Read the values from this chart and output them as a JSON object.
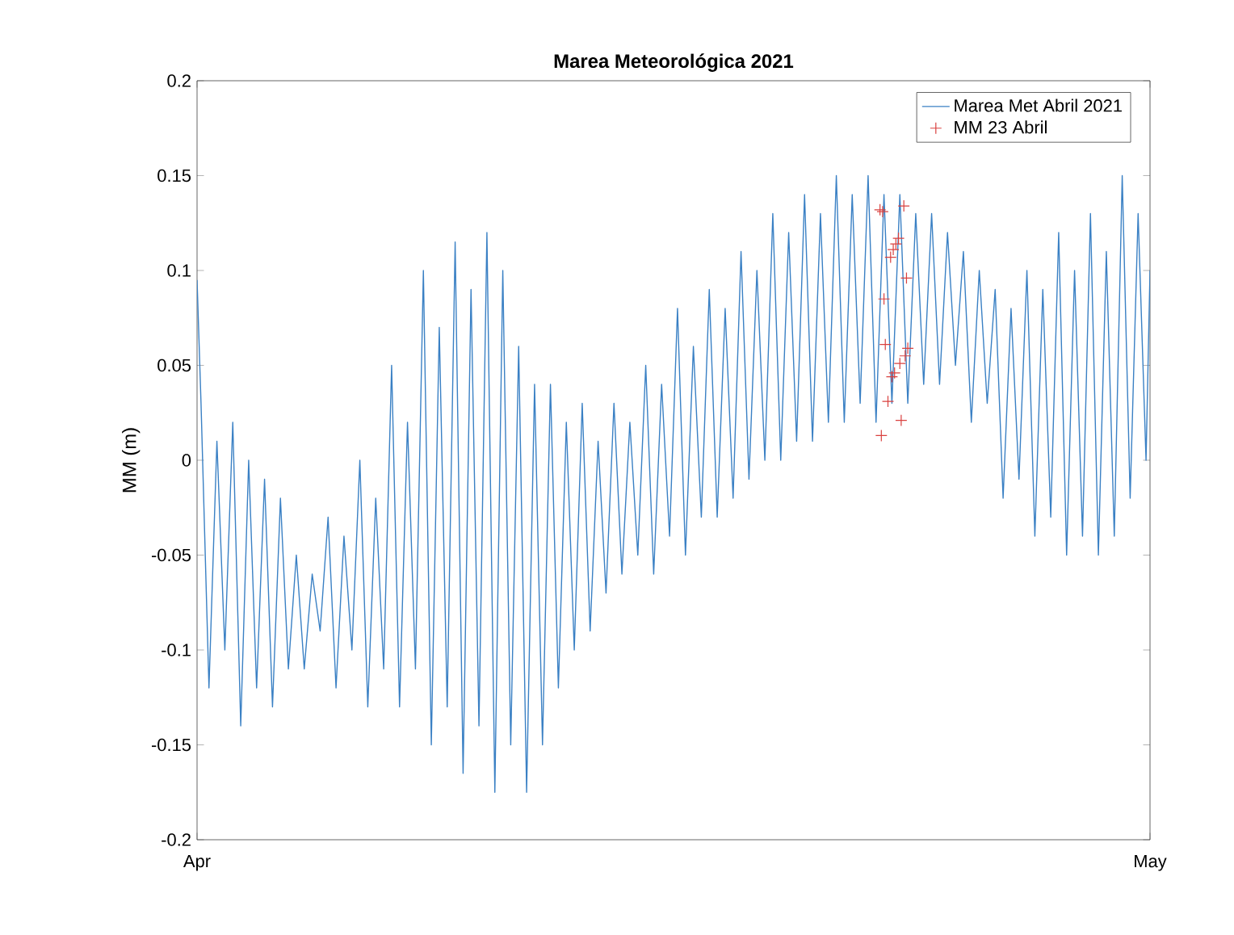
{
  "chart_data": {
    "type": "line",
    "title": "Marea Meteorológica 2021",
    "ylabel": "MM (m)",
    "xlim": [
      "2021-04-01",
      "2021-05-01"
    ],
    "xticks": [
      {
        "value": "2021-04-01",
        "label": "Apr"
      },
      {
        "value": "2021-05-01",
        "label": "May"
      }
    ],
    "ylim": [
      -0.2,
      0.2
    ],
    "yticks": [
      -0.2,
      -0.15,
      -0.1,
      -0.05,
      0,
      0.05,
      0.1,
      0.15,
      0.2
    ],
    "grid": false,
    "legend": "top right",
    "series": [
      {
        "name": "Marea Met Abril 2021",
        "color": "#3a80c4",
        "marker": "none",
        "line_style": "solid",
        "x": [
          "2021-04-01T00:00",
          "2021-04-01T03:00",
          "2021-04-01T09:00",
          "2021-04-01T15:00",
          "2021-04-01T21:00",
          "2021-04-02T03:00",
          "2021-04-02T09:00",
          "2021-04-02T15:00",
          "2021-04-02T21:00",
          "2021-04-03T03:00",
          "2021-04-03T09:00",
          "2021-04-03T15:00",
          "2021-04-03T21:00",
          "2021-04-04T03:00",
          "2021-04-04T09:00",
          "2021-04-04T15:00",
          "2021-04-04T21:00",
          "2021-04-05T03:00",
          "2021-04-05T09:00",
          "2021-04-05T15:00",
          "2021-04-05T21:00",
          "2021-04-06T03:00",
          "2021-04-06T09:00",
          "2021-04-06T15:00",
          "2021-04-06T21:00",
          "2021-04-07T03:00",
          "2021-04-07T09:00",
          "2021-04-07T15:00",
          "2021-04-07T21:00",
          "2021-04-08T03:00",
          "2021-04-08T09:00",
          "2021-04-08T15:00",
          "2021-04-08T21:00",
          "2021-04-09T03:00",
          "2021-04-09T09:00",
          "2021-04-09T15:00",
          "2021-04-09T21:00",
          "2021-04-10T03:00",
          "2021-04-10T09:00",
          "2021-04-10T15:00",
          "2021-04-10T21:00",
          "2021-04-11T03:00",
          "2021-04-11T09:00",
          "2021-04-11T15:00",
          "2021-04-11T21:00",
          "2021-04-12T03:00",
          "2021-04-12T09:00",
          "2021-04-12T15:00",
          "2021-04-12T21:00",
          "2021-04-13T03:00",
          "2021-04-13T09:00",
          "2021-04-13T15:00",
          "2021-04-13T21:00",
          "2021-04-14T03:00",
          "2021-04-14T09:00",
          "2021-04-14T15:00",
          "2021-04-14T21:00",
          "2021-04-15T03:00",
          "2021-04-15T09:00",
          "2021-04-15T15:00",
          "2021-04-15T21:00",
          "2021-04-16T03:00",
          "2021-04-16T09:00",
          "2021-04-16T15:00",
          "2021-04-16T21:00",
          "2021-04-17T03:00",
          "2021-04-17T09:00",
          "2021-04-17T15:00",
          "2021-04-17T21:00",
          "2021-04-18T03:00",
          "2021-04-18T09:00",
          "2021-04-18T15:00",
          "2021-04-18T21:00",
          "2021-04-19T03:00",
          "2021-04-19T09:00",
          "2021-04-19T15:00",
          "2021-04-19T21:00",
          "2021-04-20T03:00",
          "2021-04-20T09:00",
          "2021-04-20T15:00",
          "2021-04-20T21:00",
          "2021-04-21T03:00",
          "2021-04-21T09:00",
          "2021-04-21T15:00",
          "2021-04-21T21:00",
          "2021-04-22T03:00",
          "2021-04-22T09:00",
          "2021-04-22T15:00",
          "2021-04-22T21:00",
          "2021-04-23T03:00",
          "2021-04-23T09:00",
          "2021-04-23T15:00",
          "2021-04-23T21:00",
          "2021-04-24T03:00",
          "2021-04-24T09:00",
          "2021-04-24T15:00",
          "2021-04-24T21:00",
          "2021-04-25T03:00",
          "2021-04-25T09:00",
          "2021-04-25T15:00",
          "2021-04-25T21:00",
          "2021-04-26T03:00",
          "2021-04-26T09:00",
          "2021-04-26T15:00",
          "2021-04-26T21:00",
          "2021-04-27T03:00",
          "2021-04-27T09:00",
          "2021-04-27T15:00",
          "2021-04-27T21:00",
          "2021-04-28T03:00",
          "2021-04-28T09:00",
          "2021-04-28T15:00",
          "2021-04-28T21:00",
          "2021-04-29T03:00",
          "2021-04-29T09:00",
          "2021-04-29T15:00",
          "2021-04-29T21:00",
          "2021-04-30T03:00",
          "2021-04-30T09:00",
          "2021-04-30T15:00",
          "2021-04-30T21:00",
          "2021-05-01T00:00"
        ],
        "values": [
          0.095,
          0.03,
          -0.12,
          0.01,
          -0.1,
          0.02,
          -0.14,
          0.0,
          -0.12,
          -0.01,
          -0.13,
          -0.02,
          -0.11,
          -0.05,
          -0.11,
          -0.06,
          -0.09,
          -0.03,
          -0.12,
          -0.04,
          -0.1,
          0.0,
          -0.13,
          -0.02,
          -0.11,
          0.05,
          -0.13,
          0.02,
          -0.11,
          0.1,
          -0.15,
          0.07,
          -0.13,
          0.115,
          -0.165,
          0.09,
          -0.14,
          0.12,
          -0.175,
          0.1,
          -0.15,
          0.06,
          -0.175,
          0.04,
          -0.15,
          0.04,
          -0.12,
          0.02,
          -0.1,
          0.03,
          -0.09,
          0.01,
          -0.07,
          0.03,
          -0.06,
          0.02,
          -0.05,
          0.05,
          -0.06,
          0.04,
          -0.04,
          0.08,
          -0.05,
          0.06,
          -0.03,
          0.09,
          -0.03,
          0.08,
          -0.02,
          0.11,
          -0.01,
          0.1,
          0.0,
          0.13,
          0.0,
          0.12,
          0.01,
          0.14,
          0.01,
          0.13,
          0.02,
          0.15,
          0.02,
          0.14,
          0.03,
          0.15,
          0.02,
          0.14,
          0.03,
          0.14,
          0.03,
          0.13,
          0.04,
          0.13,
          0.04,
          0.12,
          0.05,
          0.11,
          0.02,
          0.1,
          0.03,
          0.09,
          -0.02,
          0.08,
          -0.01,
          0.1,
          -0.04,
          0.09,
          -0.03,
          0.12,
          -0.05,
          0.1,
          -0.04,
          0.13,
          -0.05,
          0.11,
          -0.04,
          0.15,
          -0.02,
          0.13,
          0.0,
          0.1
        ]
      },
      {
        "name": "MM 23 Abril",
        "type": "scatter",
        "color": "#d9413f",
        "marker": "cross",
        "x": [
          "2021-04-22T12:00",
          "2021-04-22T14:00",
          "2021-04-23T06:00",
          "2021-04-23T02:00",
          "2021-04-23T00:00",
          "2021-04-22T22:00",
          "2021-04-22T20:00",
          "2021-04-23T08:00",
          "2021-04-22T15:00",
          "2021-04-22T16:00",
          "2021-04-23T09:00",
          "2021-04-23T07:00",
          "2021-04-23T03:00",
          "2021-04-22T23:00",
          "2021-04-22T21:00",
          "2021-04-22T18:00",
          "2021-04-23T04:00",
          "2021-04-22T13:00"
        ],
        "values": [
          0.132,
          0.131,
          0.134,
          0.117,
          0.114,
          0.111,
          0.107,
          0.096,
          0.085,
          0.061,
          0.059,
          0.055,
          0.051,
          0.046,
          0.044,
          0.031,
          0.021,
          0.013
        ]
      }
    ]
  }
}
